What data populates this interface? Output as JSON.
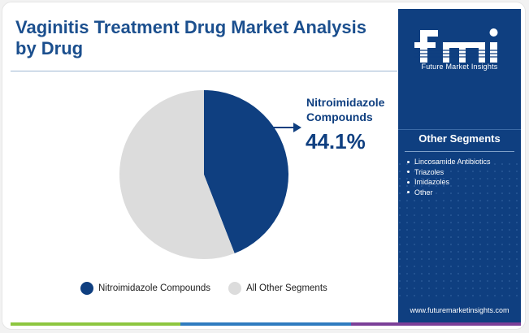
{
  "title": "Vaginitis Treatment Drug Market Analysis by Drug",
  "brand": {
    "logo_text": "fmi",
    "name": "Future Market Insights",
    "website": "www.futuremarketinsights.com"
  },
  "side_panel": {
    "heading": "Other Segments",
    "items": [
      "Lincosamide Antibiotics",
      "Triazoles",
      "Imidazoles",
      "Other"
    ]
  },
  "callout": {
    "label": "Nitroimidazole Compounds",
    "value": "44.1%"
  },
  "legend": [
    {
      "label": "Nitroimidazole Compounds",
      "color": "#0f3f80"
    },
    {
      "label": "All Other Segments",
      "color": "#dcdcdc"
    }
  ],
  "colors": {
    "primary": "#0f3f80",
    "other": "#dcdcdc",
    "accent_bar": [
      "#8dc63f",
      "#2e7bbf",
      "#7b3f98"
    ]
  },
  "chart_data": {
    "type": "pie",
    "title": "Vaginitis Treatment Drug Market Analysis by Drug",
    "slices": [
      {
        "label": "Nitroimidazole Compounds",
        "value": 44.1
      },
      {
        "label": "All Other Segments",
        "value": 55.9
      }
    ],
    "legend_position": "bottom"
  }
}
